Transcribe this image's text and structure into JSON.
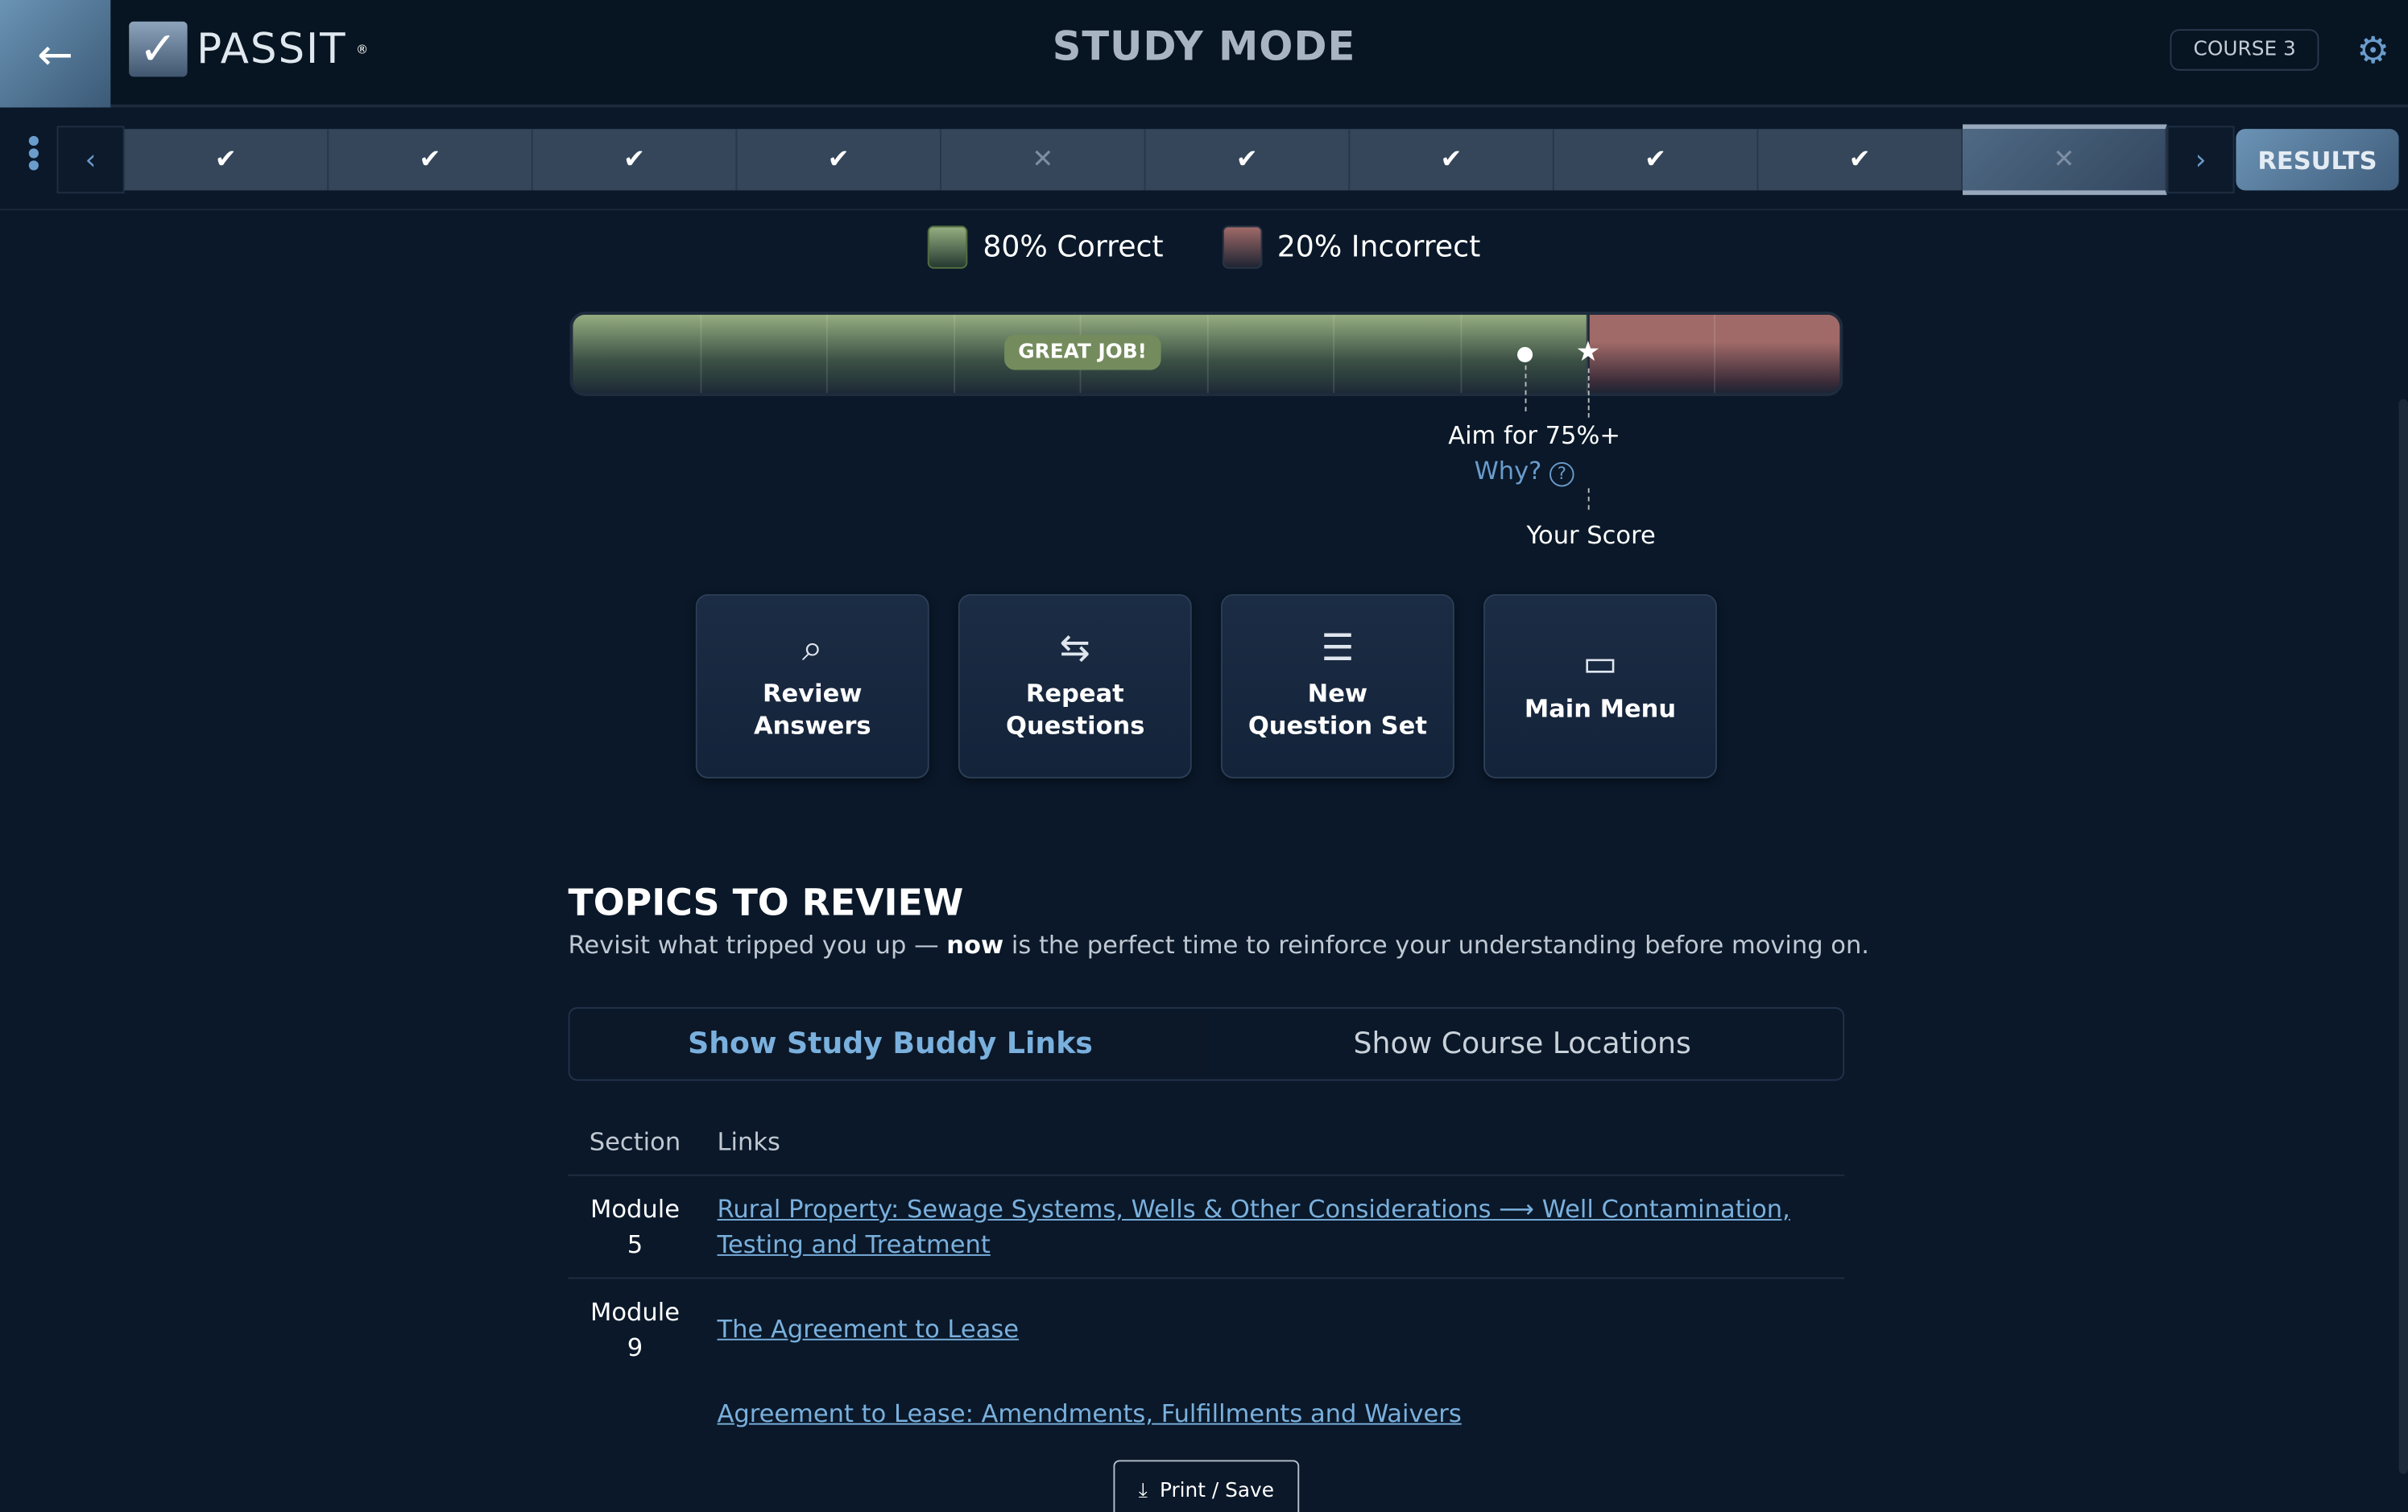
{
  "header": {
    "brand": "PASSIT",
    "brand_mark": "®",
    "title": "STUDY MODE",
    "course": "COURSE 3"
  },
  "progress": {
    "questions": [
      {
        "status": "correct"
      },
      {
        "status": "correct"
      },
      {
        "status": "correct"
      },
      {
        "status": "correct"
      },
      {
        "status": "incorrect"
      },
      {
        "status": "correct"
      },
      {
        "status": "correct"
      },
      {
        "status": "correct"
      },
      {
        "status": "correct"
      },
      {
        "status": "incorrect",
        "current": true
      }
    ],
    "results_label": "RESULTS"
  },
  "score": {
    "correct_label": "80% Correct",
    "incorrect_label": "20% Incorrect",
    "correct_pct": 80,
    "target_pct": 75,
    "badge": "GREAT JOB!",
    "aim": "Aim for 75%+",
    "why": "Why?",
    "your_score": "Your Score",
    "colors": {
      "correct": "#95ad80",
      "incorrect": "#a06a68"
    }
  },
  "actions": [
    {
      "label": "Review Answers",
      "icon": "magnify-code-icon"
    },
    {
      "label": "Repeat Questions",
      "icon": "repeat-icon"
    },
    {
      "label": "New Question Set",
      "icon": "list-icon"
    },
    {
      "label": "Main Menu",
      "icon": "card-icon"
    }
  ],
  "topics": {
    "title": "TOPICS TO REVIEW",
    "sub_pre": "Revisit what tripped you up — ",
    "sub_bold": "now",
    "sub_post": " is the perfect time to reinforce your understanding before moving on.",
    "tabs": [
      "Show Study Buddy Links",
      "Show Course Locations"
    ],
    "headers": [
      "Section",
      "Links"
    ],
    "rows": [
      {
        "section": "Module 5",
        "links": [
          "Rural Property: Sewage Systems, Wells & Other Considerations ⟶ Well Contamination, Testing and Treatment"
        ]
      },
      {
        "section": "Module 9",
        "links": [
          "The Agreement to Lease",
          "Agreement to Lease: Amendments, Fulfillments and Waivers"
        ]
      }
    ]
  },
  "print_label": "Print / Save"
}
